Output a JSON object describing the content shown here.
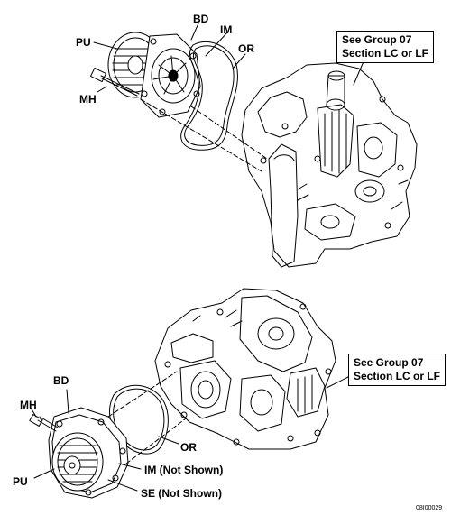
{
  "top": {
    "labels": {
      "pu": "PU",
      "bd": "BD",
      "im": "IM",
      "or": "OR",
      "mh": "MH"
    },
    "callout": {
      "line1": "See Group 07",
      "line2": "Section LC or LF"
    }
  },
  "bottom": {
    "labels": {
      "bd": "BD",
      "mh": "MH",
      "or": "OR",
      "pu": "PU",
      "im": "IM (Not Shown)",
      "se": "SE (Not Shown)"
    },
    "callout": {
      "line1": "See Group 07",
      "line2": "Section LC or LF"
    }
  },
  "figure_id": "08I00029"
}
